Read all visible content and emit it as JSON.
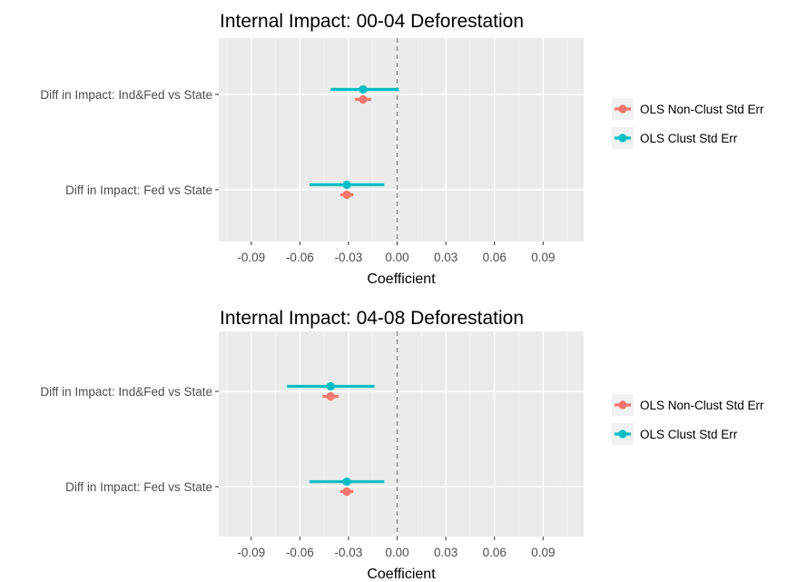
{
  "chart_data": [
    {
      "type": "forest",
      "title": "Internal Impact: 00-04 Deforestation",
      "xlabel": "Coefficient",
      "ylabel": "",
      "xlim": [
        -0.11,
        0.115
      ],
      "x_ticks": [
        "-0.09",
        "-0.06",
        "-0.03",
        "0.00",
        "0.03",
        "0.06",
        "0.09"
      ],
      "x_tick_values": [
        -0.09,
        -0.06,
        -0.03,
        0.0,
        0.03,
        0.06,
        0.09
      ],
      "reference_line": 0.0,
      "grid": true,
      "legend_position": "right",
      "categories": [
        "Diff in Impact: Ind&Fed vs State",
        "Diff in Impact: Fed vs State"
      ],
      "series": [
        {
          "name": "OLS Non-Clust Std Err",
          "color": "#F8766D",
          "estimates": [
            -0.021,
            -0.031
          ],
          "lower": [
            -0.026,
            -0.035
          ],
          "upper": [
            -0.016,
            -0.027
          ]
        },
        {
          "name": "OLS Clust Std Err",
          "color": "#00BFC4",
          "estimates": [
            -0.021,
            -0.031
          ],
          "lower": [
            -0.041,
            -0.054
          ],
          "upper": [
            0.001,
            -0.008
          ]
        }
      ]
    },
    {
      "type": "forest",
      "title": "Internal Impact: 04-08 Deforestation",
      "xlabel": "Coefficient",
      "ylabel": "",
      "xlim": [
        -0.11,
        0.115
      ],
      "x_ticks": [
        "-0.09",
        "-0.06",
        "-0.03",
        "0.00",
        "0.03",
        "0.06",
        "0.09"
      ],
      "x_tick_values": [
        -0.09,
        -0.06,
        -0.03,
        0.0,
        0.03,
        0.06,
        0.09
      ],
      "reference_line": 0.0,
      "grid": true,
      "legend_position": "right",
      "categories": [
        "Diff in Impact: Ind&Fed vs State",
        "Diff in Impact: Fed vs State"
      ],
      "series": [
        {
          "name": "OLS Non-Clust Std Err",
          "color": "#F8766D",
          "estimates": [
            -0.041,
            -0.031
          ],
          "lower": [
            -0.046,
            -0.035
          ],
          "upper": [
            -0.036,
            -0.027
          ]
        },
        {
          "name": "OLS Clust Std Err",
          "color": "#00BFC4",
          "estimates": [
            -0.041,
            -0.031
          ],
          "lower": [
            -0.068,
            -0.054
          ],
          "upper": [
            -0.014,
            -0.008
          ]
        }
      ]
    }
  ]
}
